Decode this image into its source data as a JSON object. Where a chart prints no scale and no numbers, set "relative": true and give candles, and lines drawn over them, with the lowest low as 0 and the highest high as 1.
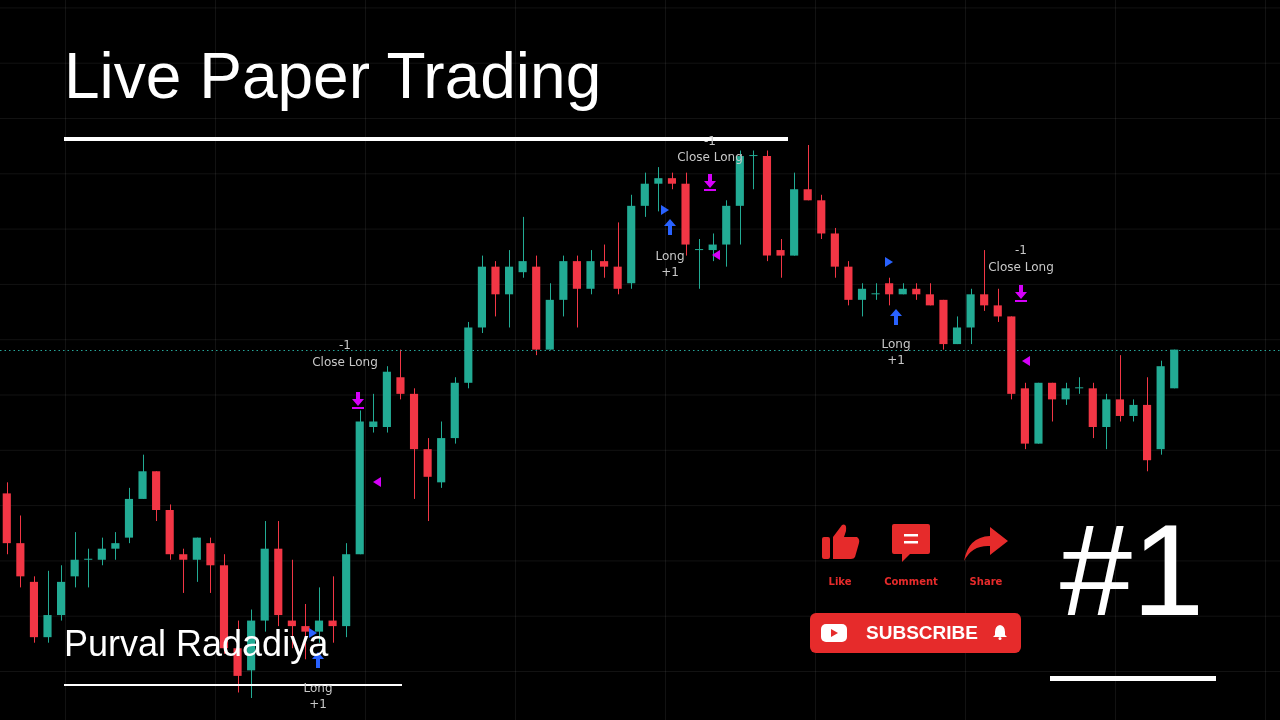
{
  "chart_data": {
    "type": "candlestick",
    "title": "Live Paper Trading",
    "relative": true,
    "legend": false,
    "grid": true,
    "categories": [
      null,
      null,
      null,
      null,
      null,
      null,
      null,
      null,
      null,
      null,
      null,
      null,
      null,
      null,
      null,
      null,
      null,
      null,
      null,
      null,
      null,
      null,
      null,
      null,
      null,
      null,
      null,
      null,
      null,
      null,
      null,
      null,
      null,
      null,
      null,
      null,
      null,
      null,
      null,
      null,
      null,
      null,
      null,
      null,
      null,
      null,
      null,
      null,
      null,
      null,
      null,
      null,
      null,
      null,
      null,
      null,
      null,
      null,
      null,
      null,
      null,
      null,
      null,
      null,
      null,
      null,
      null,
      null,
      null,
      null,
      null,
      null,
      null,
      null,
      null,
      null,
      null,
      null,
      null,
      null,
      null,
      null,
      null,
      null,
      null,
      null,
      null
    ],
    "ohlc": [
      [
        0.37,
        0.39,
        0.26,
        0.28
      ],
      [
        0.28,
        0.33,
        0.2,
        0.22
      ],
      [
        0.21,
        0.22,
        0.1,
        0.11
      ],
      [
        0.11,
        0.23,
        0.1,
        0.15
      ],
      [
        0.15,
        0.24,
        0.14,
        0.21
      ],
      [
        0.22,
        0.3,
        0.2,
        0.25
      ],
      [
        0.25,
        0.27,
        0.2,
        0.25
      ],
      [
        0.25,
        0.29,
        0.24,
        0.27
      ],
      [
        0.27,
        0.3,
        0.25,
        0.28
      ],
      [
        0.29,
        0.38,
        0.28,
        0.36
      ],
      [
        0.36,
        0.44,
        0.36,
        0.41
      ],
      [
        0.41,
        0.41,
        0.32,
        0.34
      ],
      [
        0.34,
        0.35,
        0.25,
        0.26
      ],
      [
        0.26,
        0.27,
        0.19,
        0.25
      ],
      [
        0.25,
        0.29,
        0.21,
        0.29
      ],
      [
        0.28,
        0.29,
        0.19,
        0.24
      ],
      [
        0.24,
        0.26,
        0.08,
        0.09
      ],
      [
        0.09,
        0.14,
        0.01,
        0.04
      ],
      [
        0.05,
        0.16,
        0,
        0.14
      ],
      [
        0.14,
        0.32,
        0.12,
        0.27
      ],
      [
        0.27,
        0.32,
        0.13,
        0.15
      ],
      [
        0.14,
        0.25,
        0.09,
        0.13
      ],
      [
        0.13,
        0.17,
        0.07,
        0.12
      ],
      [
        0.12,
        0.2,
        0.1,
        0.14
      ],
      [
        0.14,
        0.22,
        0.1,
        0.13
      ],
      [
        0.13,
        0.28,
        0.11,
        0.26
      ],
      [
        0.26,
        0.52,
        0.26,
        0.5
      ],
      [
        0.49,
        0.55,
        0.48,
        0.5
      ],
      [
        0.49,
        0.6,
        0.48,
        0.59
      ],
      [
        0.58,
        0.63,
        0.54,
        0.55
      ],
      [
        0.55,
        0.56,
        0.36,
        0.45
      ],
      [
        0.45,
        0.47,
        0.32,
        0.4
      ],
      [
        0.39,
        0.5,
        0.38,
        0.47
      ],
      [
        0.47,
        0.58,
        0.46,
        0.57
      ],
      [
        0.57,
        0.68,
        0.56,
        0.67
      ],
      [
        0.67,
        0.8,
        0.66,
        0.78
      ],
      [
        0.78,
        0.79,
        0.69,
        0.73
      ],
      [
        0.73,
        0.81,
        0.67,
        0.78
      ],
      [
        0.77,
        0.87,
        0.76,
        0.79
      ],
      [
        0.78,
        0.8,
        0.62,
        0.63
      ],
      [
        0.63,
        0.75,
        0.63,
        0.72
      ],
      [
        0.72,
        0.8,
        0.69,
        0.79
      ],
      [
        0.79,
        0.8,
        0.67,
        0.74
      ],
      [
        0.74,
        0.81,
        0.73,
        0.79
      ],
      [
        0.79,
        0.82,
        0.76,
        0.78
      ],
      [
        0.78,
        0.86,
        0.73,
        0.74
      ],
      [
        0.75,
        0.91,
        0.74,
        0.89
      ],
      [
        0.89,
        0.95,
        0.87,
        0.93
      ],
      [
        0.93,
        0.96,
        0.88,
        0.94
      ],
      [
        0.94,
        0.95,
        0.92,
        0.93
      ],
      [
        0.93,
        0.95,
        0.8,
        0.82
      ],
      [
        0.81,
        0.83,
        0.74,
        0.81
      ],
      [
        0.81,
        0.84,
        0.79,
        0.82
      ],
      [
        0.82,
        0.9,
        0.78,
        0.89
      ],
      [
        0.89,
        0.99,
        0.82,
        0.98
      ],
      [
        0.98,
        0.99,
        0.92,
        0.98
      ],
      [
        0.98,
        0.99,
        0.79,
        0.8
      ],
      [
        0.81,
        0.83,
        0.76,
        0.8
      ],
      [
        0.8,
        0.95,
        0.8,
        0.92
      ],
      [
        0.92,
        1,
        0.9,
        0.9
      ],
      [
        0.9,
        0.91,
        0.83,
        0.84
      ],
      [
        0.84,
        0.85,
        0.76,
        0.78
      ],
      [
        0.78,
        0.79,
        0.71,
        0.72
      ],
      [
        0.72,
        0.75,
        0.69,
        0.74
      ],
      [
        0.73,
        0.75,
        0.72,
        0.73
      ],
      [
        0.75,
        0.76,
        0.71,
        0.73
      ],
      [
        0.73,
        0.75,
        0.73,
        0.74
      ],
      [
        0.74,
        0.75,
        0.72,
        0.73
      ],
      [
        0.73,
        0.75,
        0.71,
        0.71
      ],
      [
        0.72,
        0.72,
        0.63,
        0.64
      ],
      [
        0.64,
        0.69,
        0.64,
        0.67
      ],
      [
        0.67,
        0.74,
        0.64,
        0.73
      ],
      [
        0.73,
        0.81,
        0.7,
        0.71
      ],
      [
        0.71,
        0.74,
        0.68,
        0.69
      ],
      [
        0.69,
        0.69,
        0.54,
        0.55
      ],
      [
        0.56,
        0.57,
        0.45,
        0.46
      ],
      [
        0.46,
        0.57,
        0.46,
        0.57
      ],
      [
        0.57,
        0.57,
        0.5,
        0.54
      ],
      [
        0.54,
        0.57,
        0.53,
        0.56
      ],
      [
        0.56,
        0.58,
        0.55,
        0.56
      ],
      [
        0.56,
        0.57,
        0.47,
        0.49
      ],
      [
        0.49,
        0.55,
        0.45,
        0.54
      ],
      [
        0.54,
        0.62,
        0.5,
        0.51
      ],
      [
        0.51,
        0.54,
        0.5,
        0.53
      ],
      [
        0.53,
        0.58,
        0.41,
        0.43
      ],
      [
        0.45,
        0.61,
        0.44,
        0.6
      ],
      [
        0.56,
        0.63,
        0.56,
        0.63
      ]
    ],
    "colors": [
      "#f23645",
      "#f23645",
      "#f23645",
      "#22ab94",
      "#22ab94",
      "#22ab94",
      "#22ab94",
      "#22ab94",
      "#22ab94",
      "#22ab94",
      "#22ab94",
      "#f23645",
      "#f23645",
      "#f23645",
      "#22ab94",
      "#f23645",
      "#f23645",
      "#f23645",
      "#22ab94",
      "#22ab94",
      "#f23645",
      "#f23645",
      "#f23645",
      "#22ab94",
      "#f23645",
      "#22ab94",
      "#22ab94",
      "#22ab94",
      "#22ab94",
      "#f23645",
      "#f23645",
      "#f23645",
      "#22ab94",
      "#22ab94",
      "#22ab94",
      "#22ab94",
      "#f23645",
      "#22ab94",
      "#22ab94",
      "#f23645",
      "#22ab94",
      "#22ab94",
      "#f23645",
      "#22ab94",
      "#f23645",
      "#f23645",
      "#22ab94",
      "#22ab94",
      "#22ab94",
      "#f23645",
      "#f23645",
      "#22ab94",
      "#22ab94",
      "#22ab94",
      "#22ab94",
      "#22ab94",
      "#f23645",
      "#f23645",
      "#22ab94",
      "#f23645",
      "#f23645",
      "#f23645",
      "#f23645",
      "#22ab94",
      "#22ab94",
      "#f23645",
      "#22ab94",
      "#f23645",
      "#f23645",
      "#f23645",
      "#22ab94",
      "#22ab94",
      "#f23645",
      "#f23645",
      "#f23645",
      "#f23645",
      "#22ab94",
      "#f23645",
      "#22ab94",
      "#22ab94",
      "#f23645",
      "#22ab94",
      "#f23645",
      "#22ab94",
      "#f23645",
      "#22ab94",
      "#22ab94"
    ],
    "ref_lines": [
      {
        "axis": "y",
        "value": 0.63,
        "color": "#26a69a",
        "line_style": "dotted"
      }
    ],
    "annotations": [
      "Purval Radadiya",
      "#1",
      "Like",
      "Comment",
      "Share",
      "SUBSCRIBE",
      "-1",
      "Close Long",
      "Long",
      "+1",
      "Long",
      "+1",
      "-1",
      "Close Long",
      "Long",
      "+1",
      "-1",
      "Close Long"
    ]
  }
}
